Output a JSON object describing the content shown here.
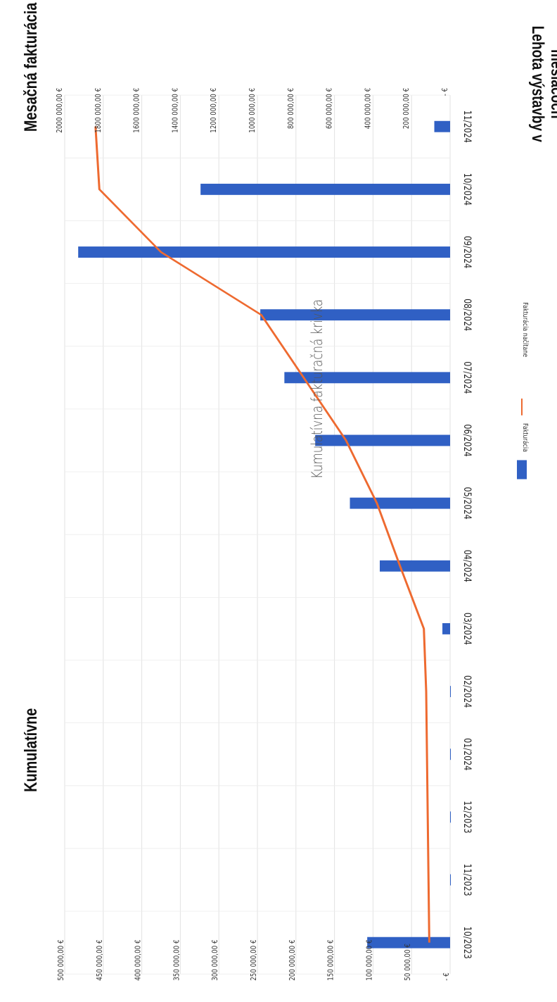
{
  "labels": {
    "right_axis_label": "Mesačná fakturácia",
    "left_axis_label": "Kumulatívne",
    "time_axis_label": "Lehota výstavby v mesiacoch",
    "title": "Kumulatívna fakturačná krivka"
  },
  "legend": {
    "bar_label": "Fakturácia",
    "line_label": "Fakturácia načítane"
  },
  "chart_data": {
    "type": "bar",
    "title": "Kumulatívna fakturačná krivka",
    "categories": [
      "10/2023",
      "11/2023",
      "12/2023",
      "01/2024",
      "02/2024",
      "03/2024",
      "04/2024",
      "05/2024",
      "06/2024",
      "07/2024",
      "08/2024",
      "09/2024",
      "10/2024",
      "11/2024"
    ],
    "series": [
      {
        "name": "Fakturácia",
        "axis": "monthly",
        "color": "#3060C4",
        "values": [
          430000,
          0,
          0,
          0,
          0,
          40000,
          365000,
          520000,
          700000,
          860000,
          985000,
          1930000,
          1295000,
          82000
        ]
      },
      {
        "name": "Fakturácia načítane",
        "axis": "cumulative",
        "color": "#EE6A30",
        "values": [
          27000,
          28000,
          29000,
          30000,
          31000,
          34000,
          65000,
          95000,
          135000,
          190000,
          245000,
          375000,
          455000,
          460000
        ]
      }
    ],
    "monthly_axis": {
      "label": "Mesačná fakturácia",
      "range": [
        0,
        2000000
      ],
      "tick_labels": [
        "- €",
        "200 000,00 €",
        "400 000,00 €",
        "600 000,00 €",
        "800 000,00 €",
        "1000 000,00 €",
        "1200 000,00 €",
        "1400 000,00 €",
        "1600 000,00 €",
        "1800 000,00 €",
        "2000 000,00 €"
      ]
    },
    "cumulative_axis": {
      "label": "Kumulatívne",
      "range": [
        0,
        500000
      ],
      "tick_labels": [
        "- €",
        "50 000,00 €",
        "100 000,00 €",
        "150 000,00 €",
        "200 000,00 €",
        "250 000,00 €",
        "300 000,00 €",
        "350 000,00 €",
        "400 000,00 €",
        "450 000,00 €",
        "500 000,00 €"
      ]
    },
    "orientation": "rotated-90",
    "grid": true,
    "legend_position": "bottom"
  }
}
